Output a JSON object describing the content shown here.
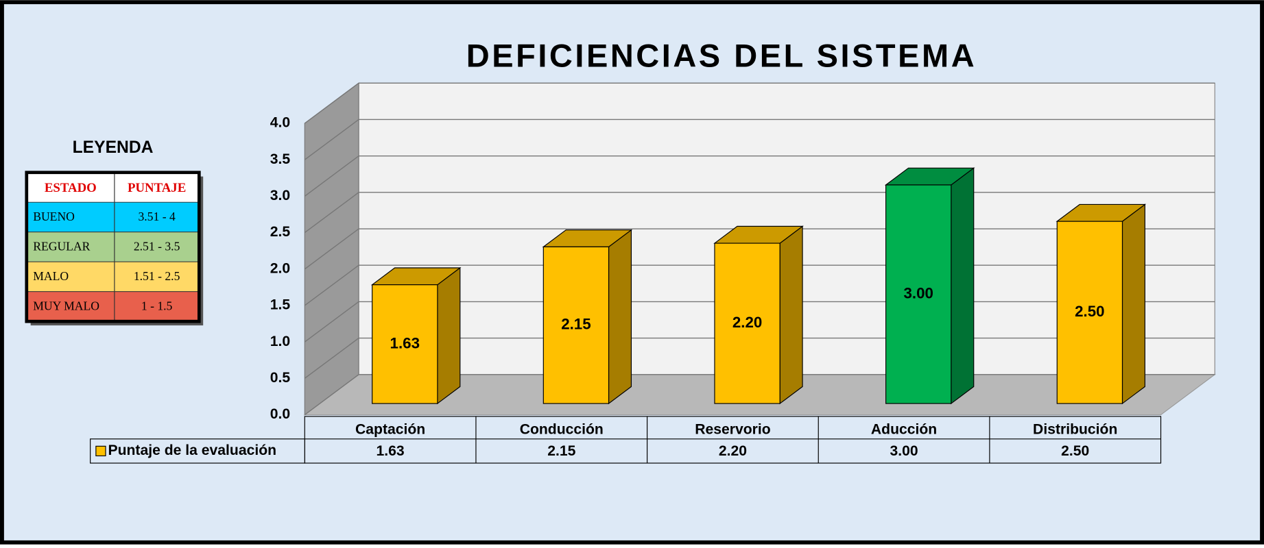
{
  "chart_data": {
    "type": "bar3d",
    "title": "DEFICIENCIAS DEL SISTEMA",
    "categories": [
      "Captación",
      "Conducción",
      "Reservorio",
      "Aducción",
      "Distribución"
    ],
    "series": [
      {
        "name": "Puntaje de la evaluación",
        "color": "#ffc000",
        "colors": [
          "#ffc000",
          "#ffc000",
          "#ffc000",
          "#00b050",
          "#ffc000"
        ],
        "values": [
          1.63,
          2.15,
          2.2,
          3,
          2.5
        ],
        "value_labels": [
          "1.63",
          "2.15",
          "2.20",
          "3.00",
          "2.50"
        ]
      }
    ],
    "ylim": [
      0,
      4
    ],
    "yticks": [
      {
        "value": 0,
        "label": "0.0"
      },
      0.5,
      {
        "value": 1,
        "label": "1.0"
      },
      1.5,
      {
        "value": 2,
        "label": "2.0"
      },
      2.5,
      {
        "value": 3,
        "label": "3.0"
      },
      3.5,
      {
        "value": 4,
        "label": "4.0"
      }
    ],
    "grid": true
  },
  "legend_table": {
    "title": "LEYENDA",
    "header": [
      "ESTADO",
      "PUNTAJE"
    ],
    "rows": [
      {
        "estado": "BUENO",
        "puntaje": "3.51 - 4",
        "color": "#00ccff"
      },
      {
        "estado": "REGULAR",
        "puntaje": "2.51 - 3.5",
        "color": "#a9d08e"
      },
      {
        "estado": "MALO",
        "puntaje": "1.51 - 2.5",
        "color": "#ffd966"
      },
      {
        "estado": "MUY MALO",
        "puntaje": "1 - 1.5",
        "color": "#e8604c"
      }
    ]
  }
}
